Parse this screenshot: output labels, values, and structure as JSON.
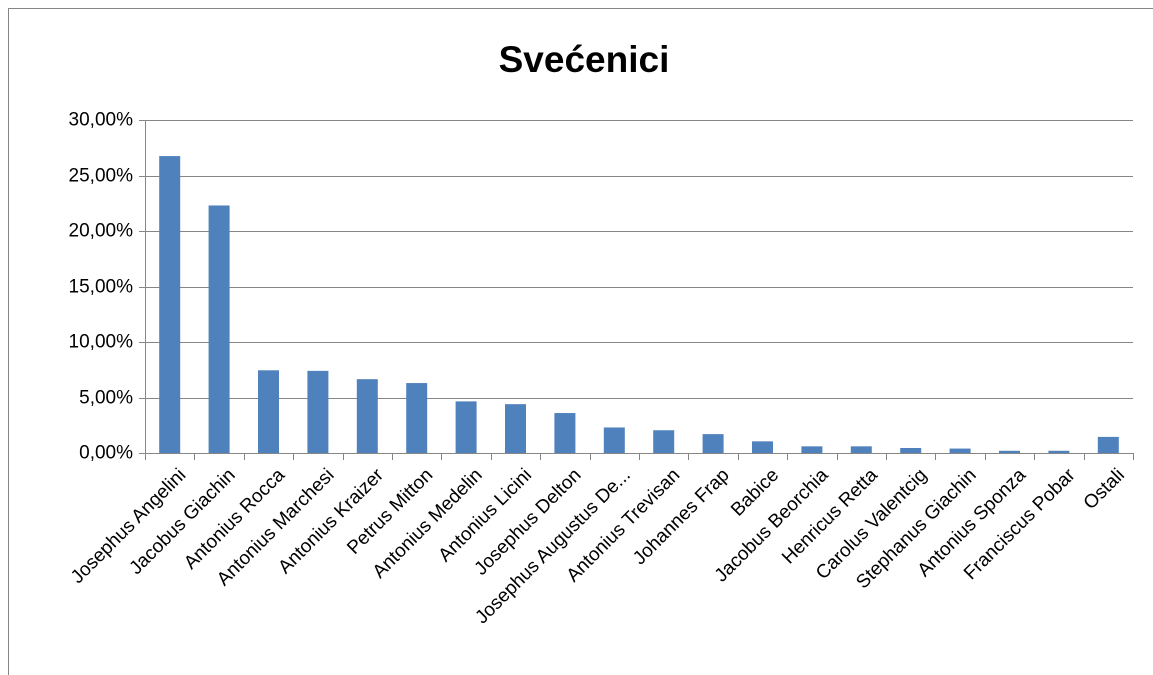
{
  "chart_data": {
    "type": "bar",
    "title": "Svećenici",
    "categories": [
      "Josephus Angelini",
      "Jacobus Giachin",
      "Antonius Rocca",
      "Antonius Marchesi",
      "Antonius Kraizer",
      "Petrus Mitton",
      "Antonius Medelin",
      "Antonius Licini",
      "Josephus Delton",
      "Josephus Augustus De...",
      "Antonius Trevisan",
      "Johannes Frap",
      "Babice",
      "Jacobus Beorchia",
      "Henricus Retta",
      "Carolus Valentcig",
      "Stephanus Giachin",
      "Antonius Sponza",
      "Franciscus Pobar",
      "Ostali"
    ],
    "values": [
      26.75,
      22.3,
      7.45,
      7.4,
      6.65,
      6.3,
      4.65,
      4.4,
      3.6,
      2.3,
      2.05,
      1.7,
      1.05,
      0.6,
      0.6,
      0.45,
      0.4,
      0.2,
      0.2,
      1.45
    ],
    "color": "#4f81bd",
    "ylim": [
      0,
      30
    ],
    "yticks": [
      {
        "value": 0,
        "label": "0,00%"
      },
      {
        "value": 5,
        "label": "5,00%"
      },
      {
        "value": 10,
        "label": "10,00%"
      },
      {
        "value": 15,
        "label": "15,00%"
      },
      {
        "value": 20,
        "label": "20,00%"
      },
      {
        "value": 25,
        "label": "25,00%"
      },
      {
        "value": 30,
        "label": "30,00%"
      }
    ],
    "grid": true
  }
}
